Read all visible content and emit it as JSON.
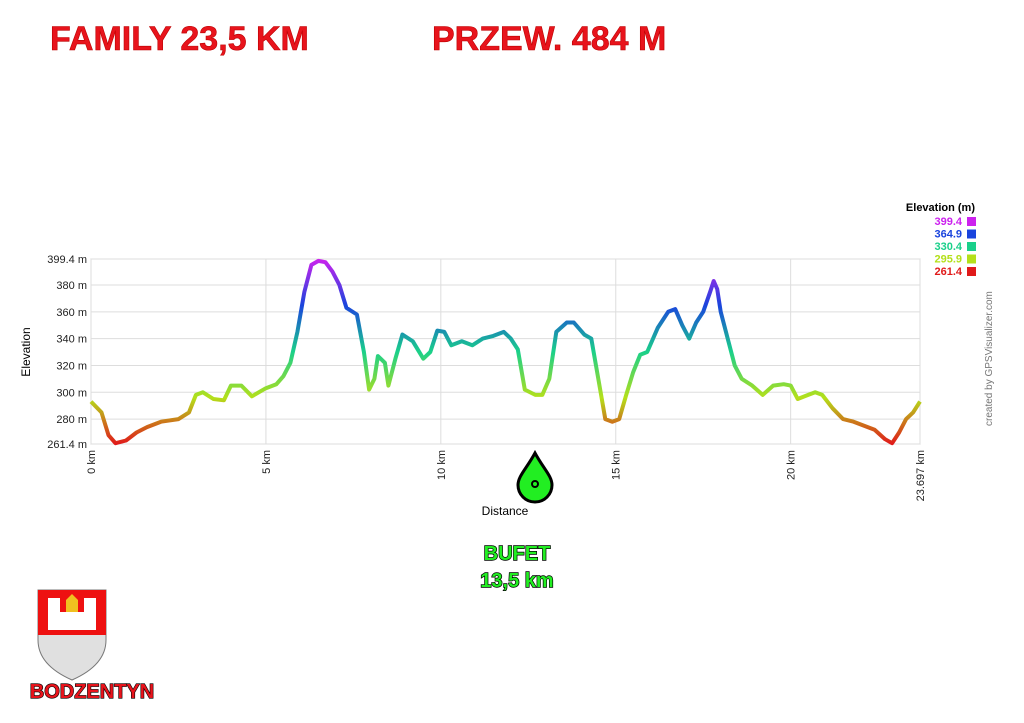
{
  "chart_data": {
    "type": "line",
    "title": "FAMILY 23,5 KM",
    "subtitle": "PRZEW. 484 M",
    "xlabel": "Distance",
    "ylabel": "Elevation",
    "x": [
      0,
      0.3,
      0.5,
      0.7,
      1.0,
      1.3,
      1.6,
      2.0,
      2.5,
      2.8,
      3.0,
      3.2,
      3.5,
      3.8,
      4.0,
      4.3,
      4.6,
      5.0,
      5.3,
      5.5,
      5.7,
      5.9,
      6.1,
      6.3,
      6.5,
      6.7,
      6.9,
      7.1,
      7.3,
      7.6,
      7.8,
      7.95,
      8.1,
      8.2,
      8.4,
      8.5,
      8.7,
      8.9,
      9.2,
      9.5,
      9.7,
      9.9,
      10.1,
      10.3,
      10.6,
      10.9,
      11.2,
      11.5,
      11.8,
      12.0,
      12.2,
      12.4,
      12.7,
      12.9,
      13.1,
      13.3,
      13.6,
      13.8,
      14.1,
      14.3,
      14.5,
      14.7,
      14.9,
      15.1,
      15.3,
      15.5,
      15.7,
      15.9,
      16.2,
      16.5,
      16.7,
      16.9,
      17.1,
      17.3,
      17.5,
      17.7,
      17.8,
      17.9,
      18.0,
      18.2,
      18.4,
      18.6,
      18.9,
      19.2,
      19.5,
      19.8,
      20.0,
      20.2,
      20.5,
      20.7,
      20.9,
      21.2,
      21.5,
      21.8,
      22.1,
      22.4,
      22.7,
      22.9,
      23.1,
      23.3,
      23.5,
      23.697
    ],
    "values": [
      293,
      285,
      268,
      262,
      264,
      270,
      274,
      278,
      280,
      285,
      298,
      300,
      295,
      294,
      305,
      305,
      297,
      303,
      306,
      312,
      322,
      345,
      375,
      395,
      398,
      397,
      390,
      380,
      363,
      358,
      330,
      302,
      310,
      327,
      322,
      305,
      325,
      343,
      338,
      325,
      330,
      346,
      345,
      335,
      338,
      335,
      340,
      342,
      345,
      340,
      332,
      302,
      298,
      298,
      310,
      345,
      352,
      352,
      343,
      340,
      310,
      280,
      278,
      280,
      298,
      315,
      328,
      330,
      348,
      360,
      362,
      350,
      340,
      352,
      360,
      375,
      383,
      377,
      360,
      340,
      320,
      310,
      305,
      298,
      305,
      306,
      305,
      295,
      298,
      300,
      298,
      288,
      280,
      278,
      275,
      272,
      265,
      262,
      270,
      280,
      285,
      293
    ],
    "xlim": [
      0,
      23.697
    ],
    "ylim": [
      261.4,
      399.4
    ],
    "xticks": [
      {
        "value": 0,
        "label": "0 km"
      },
      {
        "value": 5,
        "label": "5 km"
      },
      {
        "value": 10,
        "label": "10 km"
      },
      {
        "value": 15,
        "label": "15 km"
      },
      {
        "value": 20,
        "label": "20 km"
      },
      {
        "value": 23.697,
        "label": "23.697 km"
      }
    ],
    "yticks": [
      {
        "value": 261.4,
        "label": "261.4 m"
      },
      {
        "value": 280,
        "label": "280 m"
      },
      {
        "value": 300,
        "label": "300 m"
      },
      {
        "value": 320,
        "label": "320 m"
      },
      {
        "value": 340,
        "label": "340 m"
      },
      {
        "value": 360,
        "label": "360 m"
      },
      {
        "value": 380,
        "label": "380 m"
      },
      {
        "value": 399.4,
        "label": "399.4 m"
      }
    ],
    "grid": true,
    "color_scale": {
      "title": "Elevation (m)",
      "values": [
        399.4,
        364.9,
        330.4,
        295.9,
        261.4
      ],
      "colors": [
        "#cc22ee",
        "#1a44dd",
        "#1ad08a",
        "#b4e01a",
        "#e01a1a"
      ]
    },
    "credit": "created by GPSVisualizer.com",
    "annotations": [
      "BUFET",
      "13,5 km"
    ]
  },
  "logo_text": "BODZENTYN"
}
